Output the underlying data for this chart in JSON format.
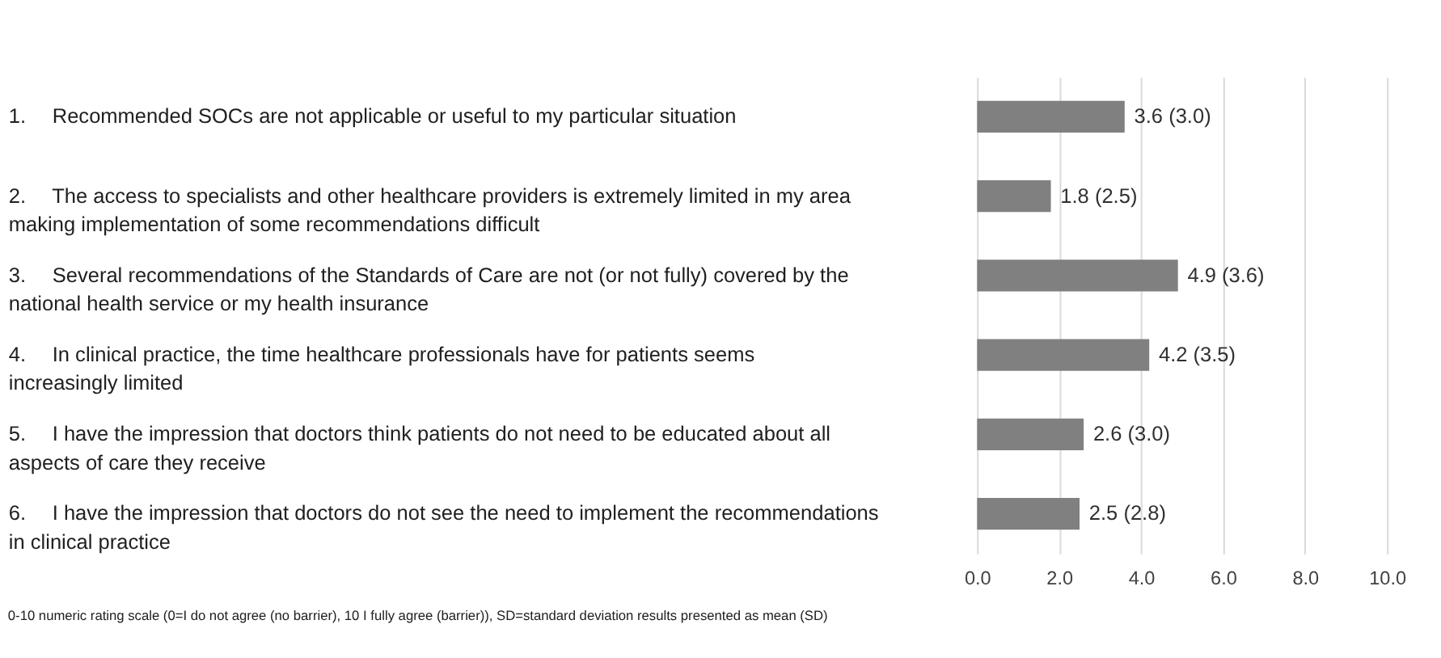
{
  "chart_data": {
    "type": "bar",
    "orientation": "horizontal",
    "categories": [
      "1. Recommended SOCs are not applicable or useful to my particular situation",
      "2. The access to specialists and other healthcare providers is extremely limited in my area making implementation of some recommendations difficult",
      "3. Several recommendations of the Standards of Care are not (or not fully) covered by the national health service or my health insurance",
      "4. In clinical practice, the time healthcare professionals have for patients seems increasingly limited",
      "5. I have the impression that doctors think patients do not need to be educated about all aspects of care they receive",
      "6. I have the impression that doctors do not see the need to implement the recommendations in clinical practice"
    ],
    "values": [
      3.6,
      1.8,
      4.9,
      4.2,
      2.6,
      2.5
    ],
    "value_labels": [
      "3.6 (3.0)",
      "1.8 (2.5)",
      "4.9 (3.6)",
      "4.2 (3.5)",
      "2.6 (3.0)",
      "2.5 (2.8)"
    ],
    "color": "#808080",
    "xlim": [
      0,
      10
    ],
    "xticks": [
      {
        "value": 0,
        "label": "0.0"
      },
      {
        "value": 2,
        "label": "2.0"
      },
      {
        "value": 4,
        "label": "4.0"
      },
      {
        "value": 6,
        "label": "6.0"
      },
      {
        "value": 8,
        "label": "8.0"
      },
      {
        "value": 10,
        "label": "10.0"
      }
    ],
    "grid": "x",
    "annotations": [
      "0-10 numeric rating scale (0=I do not agree (no barrier), 10 I fully agree (barrier)), SD=standard deviation results presented as mean (SD)"
    ]
  }
}
